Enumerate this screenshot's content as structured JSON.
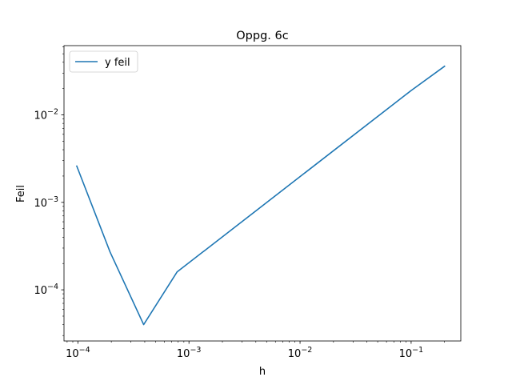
{
  "chart_data": {
    "type": "line",
    "title": "Oppg. 6c",
    "xlabel": "h",
    "ylabel": "Feil",
    "xscale": "log",
    "yscale": "log",
    "xlim": [
      7.5e-05,
      0.28
    ],
    "ylim": [
      2.6e-05,
      0.062
    ],
    "grid": false,
    "legend_position": "top-left",
    "x_ticks": [
      {
        "value": 0.0001,
        "mantissa": "10",
        "exponent": "−4"
      },
      {
        "value": 0.001,
        "mantissa": "10",
        "exponent": "−3"
      },
      {
        "value": 0.01,
        "mantissa": "10",
        "exponent": "−2"
      },
      {
        "value": 0.1,
        "mantissa": "10",
        "exponent": "−1"
      }
    ],
    "y_ticks": [
      {
        "value": 0.0001,
        "mantissa": "10",
        "exponent": "−4"
      },
      {
        "value": 0.001,
        "mantissa": "10",
        "exponent": "−3"
      },
      {
        "value": 0.01,
        "mantissa": "10",
        "exponent": "−2"
      }
    ],
    "series": [
      {
        "name": "y feil",
        "color": "#1f77b4",
        "x": [
          9.77e-05,
          0.000195,
          0.000391,
          0.000781,
          0.1,
          0.2
        ],
        "y": [
          0.0026,
          0.00027,
          4e-05,
          0.00016,
          0.019,
          0.036
        ]
      }
    ]
  }
}
